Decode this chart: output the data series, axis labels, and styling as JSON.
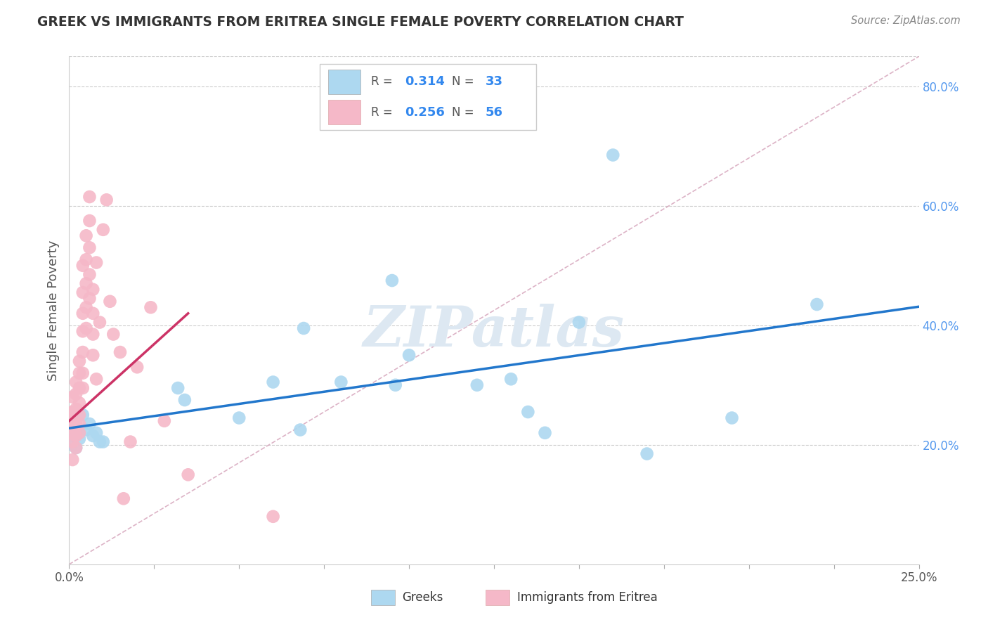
{
  "title": "GREEK VS IMMIGRANTS FROM ERITREA SINGLE FEMALE POVERTY CORRELATION CHART",
  "source": "Source: ZipAtlas.com",
  "ylabel": "Single Female Poverty",
  "legend_blue_R": "0.314",
  "legend_blue_N": "33",
  "legend_pink_R": "0.256",
  "legend_pink_N": "56",
  "legend_label_blue": "Greeks",
  "legend_label_pink": "Immigrants from Eritrea",
  "blue_color": "#add8f0",
  "pink_color": "#f5b8c8",
  "blue_line_color": "#2277cc",
  "pink_line_color": "#cc3366",
  "diag_line_color": "#ddbbcc",
  "watermark": "ZIPatlas",
  "xlim": [
    0.0,
    0.25
  ],
  "ylim": [
    0.0,
    0.85
  ],
  "blue_x": [
    0.001,
    0.001,
    0.001,
    0.002,
    0.002,
    0.003,
    0.003,
    0.004,
    0.005,
    0.006,
    0.007,
    0.008,
    0.009,
    0.01,
    0.032,
    0.034,
    0.05,
    0.068,
    0.069,
    0.095,
    0.096,
    0.12,
    0.135,
    0.14,
    0.15,
    0.16,
    0.17,
    0.195,
    0.22,
    0.1,
    0.13,
    0.08,
    0.06
  ],
  "blue_y": [
    0.245,
    0.215,
    0.2,
    0.23,
    0.195,
    0.22,
    0.21,
    0.25,
    0.225,
    0.235,
    0.215,
    0.22,
    0.205,
    0.205,
    0.295,
    0.275,
    0.245,
    0.225,
    0.395,
    0.475,
    0.3,
    0.3,
    0.255,
    0.22,
    0.405,
    0.685,
    0.185,
    0.245,
    0.435,
    0.35,
    0.31,
    0.305,
    0.305
  ],
  "pink_x": [
    0.0,
    0.0,
    0.001,
    0.001,
    0.001,
    0.001,
    0.001,
    0.002,
    0.002,
    0.002,
    0.002,
    0.002,
    0.002,
    0.003,
    0.003,
    0.003,
    0.003,
    0.003,
    0.003,
    0.003,
    0.004,
    0.004,
    0.004,
    0.004,
    0.004,
    0.004,
    0.004,
    0.005,
    0.005,
    0.005,
    0.005,
    0.005,
    0.006,
    0.006,
    0.006,
    0.006,
    0.006,
    0.007,
    0.007,
    0.007,
    0.007,
    0.008,
    0.008,
    0.009,
    0.01,
    0.011,
    0.012,
    0.013,
    0.015,
    0.016,
    0.018,
    0.02,
    0.024,
    0.028,
    0.035,
    0.06
  ],
  "pink_y": [
    0.25,
    0.22,
    0.28,
    0.255,
    0.23,
    0.205,
    0.175,
    0.305,
    0.285,
    0.26,
    0.235,
    0.215,
    0.195,
    0.34,
    0.32,
    0.295,
    0.27,
    0.25,
    0.235,
    0.22,
    0.5,
    0.455,
    0.42,
    0.39,
    0.355,
    0.32,
    0.295,
    0.55,
    0.51,
    0.47,
    0.43,
    0.395,
    0.615,
    0.575,
    0.53,
    0.485,
    0.445,
    0.46,
    0.42,
    0.385,
    0.35,
    0.505,
    0.31,
    0.405,
    0.56,
    0.61,
    0.44,
    0.385,
    0.355,
    0.11,
    0.205,
    0.33,
    0.43,
    0.24,
    0.15,
    0.08
  ]
}
